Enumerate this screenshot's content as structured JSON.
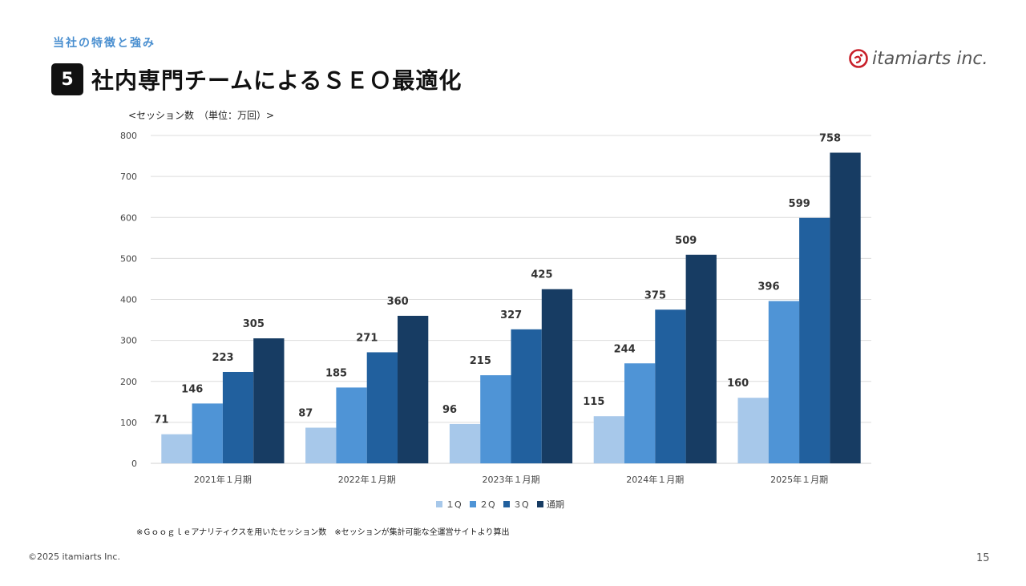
{
  "header": {
    "section_label": "当社の特徴と強み",
    "badge_number": "5",
    "title": "社内専門チームによるＳＥＯ最適化"
  },
  "logo": {
    "text": "itamiarts inc.",
    "icon": "itamiarts-logo-icon",
    "color": "#c8202a"
  },
  "unit_label": "<セッション数　（単位：万回）>",
  "chart_data": {
    "type": "bar",
    "title": "",
    "xlabel": "",
    "ylabel": "セッション数（万回）",
    "ylim": [
      0,
      800
    ],
    "yticks": [
      0,
      100,
      200,
      300,
      400,
      500,
      600,
      700,
      800
    ],
    "grid": true,
    "legend_position": "bottom",
    "categories": [
      "2021年１月期",
      "2022年１月期",
      "2023年１月期",
      "2024年１月期",
      "2025年１月期"
    ],
    "series": [
      {
        "name": "１Q",
        "color": "#a7c8ea",
        "values": [
          71,
          87,
          96,
          115,
          160
        ]
      },
      {
        "name": "２Q",
        "color": "#4f94d6",
        "values": [
          146,
          185,
          215,
          244,
          396
        ]
      },
      {
        "name": "３Q",
        "color": "#21609e",
        "values": [
          223,
          271,
          327,
          375,
          599
        ]
      },
      {
        "name": "通期",
        "color": "#173c63",
        "values": [
          305,
          360,
          425,
          509,
          758
        ]
      }
    ]
  },
  "footnote": "※Ｇｏｏｇｌｅアナリティクスを用いたセッション数　※セッションが集計可能な全運営サイトより算出",
  "footer": {
    "copyright": "©2025 itamiarts Inc.",
    "page_number": "15"
  }
}
